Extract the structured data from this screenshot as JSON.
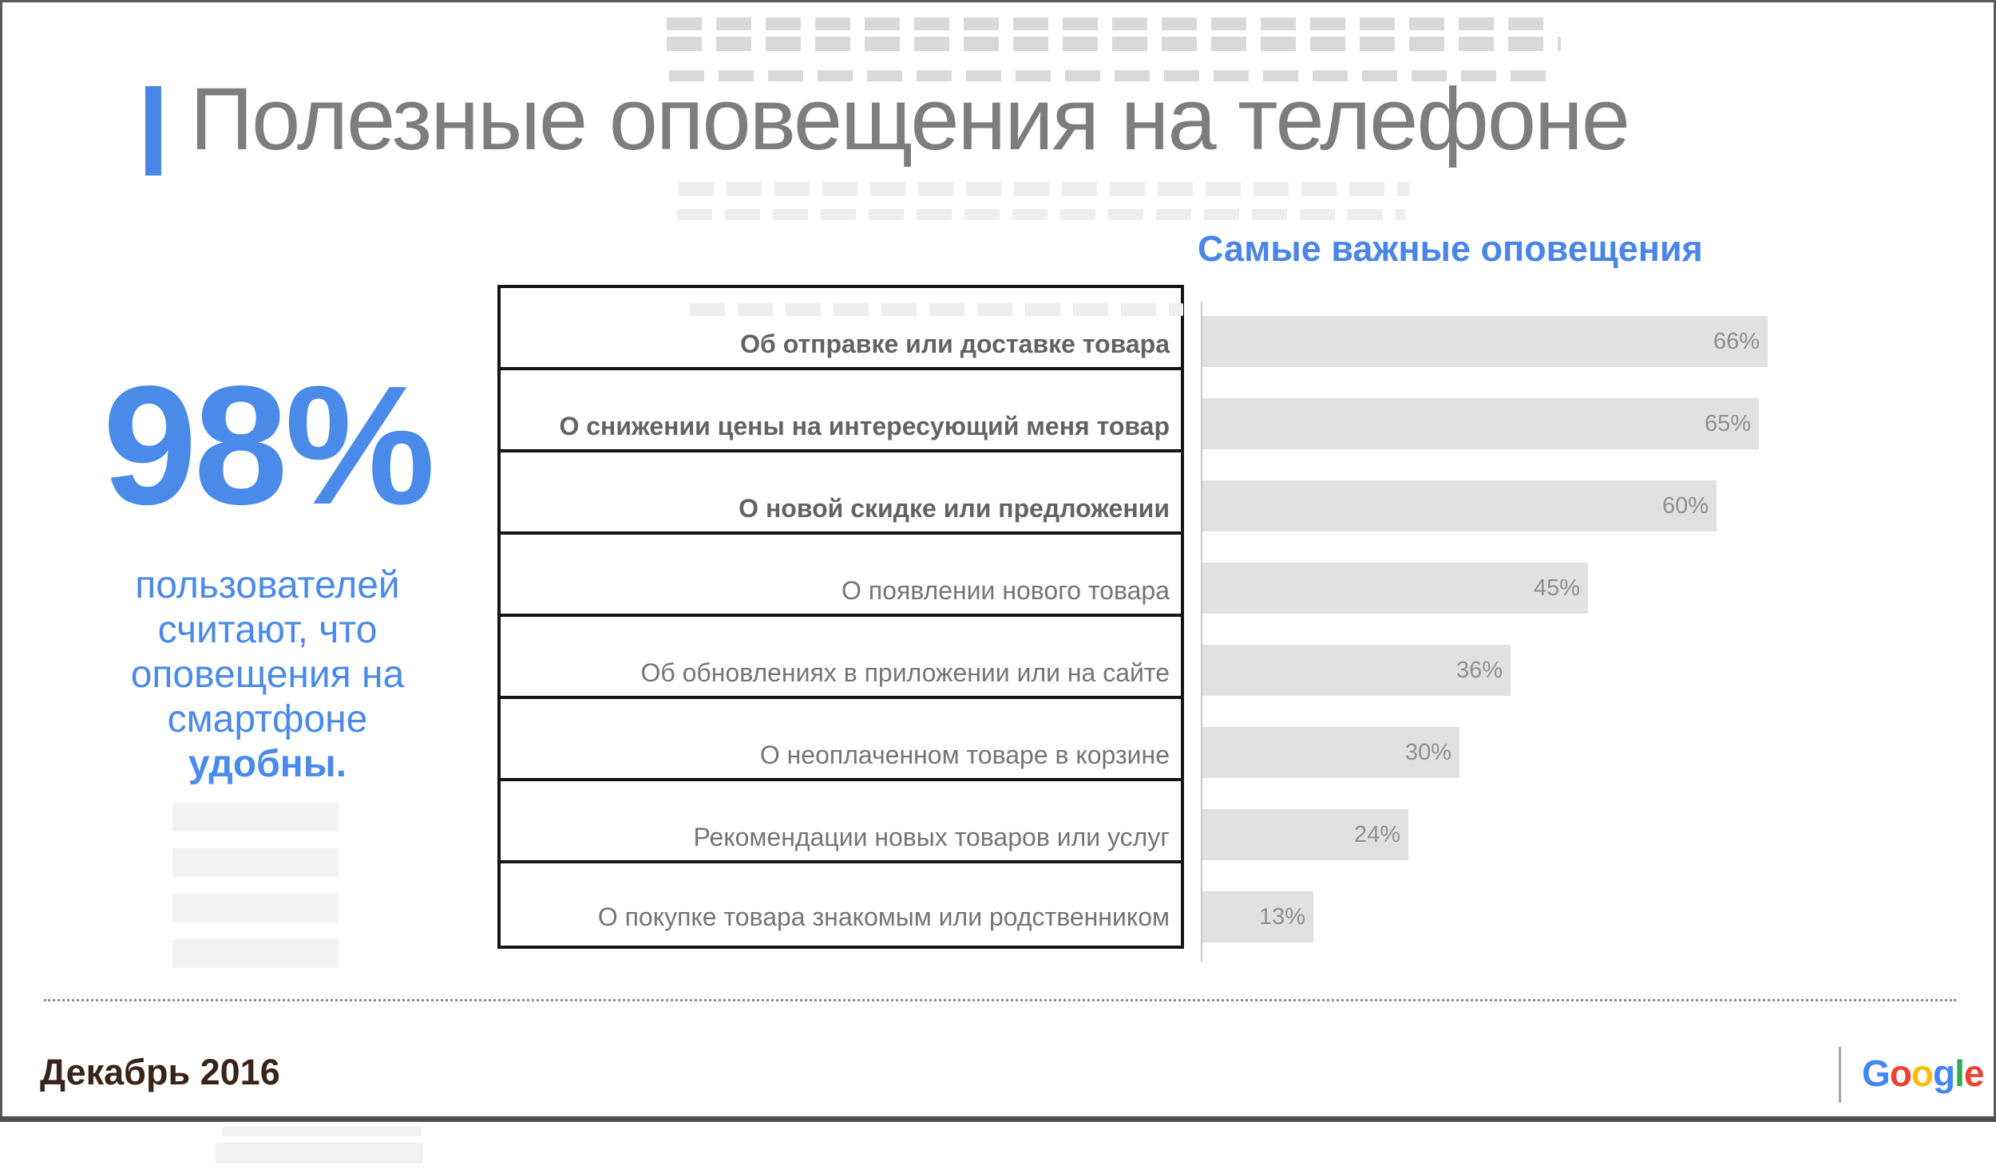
{
  "slide": {
    "title": "Полезные оповещения на телефоне",
    "accent_color": "#4a86e8"
  },
  "stat": {
    "value": "98%",
    "lines": [
      "пользователей",
      "считают, что",
      "оповещения на",
      "смартфоне"
    ],
    "emphasis": "удобны.",
    "color": "#4a8ae8"
  },
  "chart_data": {
    "type": "bar",
    "orientation": "horizontal",
    "title": "Самые важные оповещения",
    "categories": [
      "Об отправке или доставке товара",
      "О снижении цены на интересующий меня товар",
      "О новой скидке или предложении",
      "О появлении нового товара",
      "Об обновлениях в приложении или на сайте",
      "О неоплаченном товаре в корзине",
      "Рекомендации новых товаров или услуг",
      "О покупке товара знакомым или родственником"
    ],
    "values": [
      66,
      65,
      60,
      45,
      36,
      30,
      24,
      13
    ],
    "value_labels": [
      "66%",
      "65%",
      "60%",
      "45%",
      "36%",
      "30%",
      "24%",
      "13%"
    ],
    "label_bold": [
      true,
      true,
      true,
      false,
      false,
      false,
      false,
      false
    ],
    "xlim": [
      0,
      100
    ],
    "grid": false,
    "legend": "none",
    "bar_color": "#e1e1e1",
    "value_label_color": "#8f8f8f"
  },
  "footer": {
    "date": "Декабрь 2016",
    "logo_text": "Google",
    "logo_letters": [
      {
        "ch": "G",
        "color": "#4285F4"
      },
      {
        "ch": "o",
        "color": "#EA4335"
      },
      {
        "ch": "o",
        "color": "#FBBC05"
      },
      {
        "ch": "g",
        "color": "#4285F4"
      },
      {
        "ch": "l",
        "color": "#34A853"
      },
      {
        "ch": "e",
        "color": "#EA4335"
      }
    ]
  }
}
